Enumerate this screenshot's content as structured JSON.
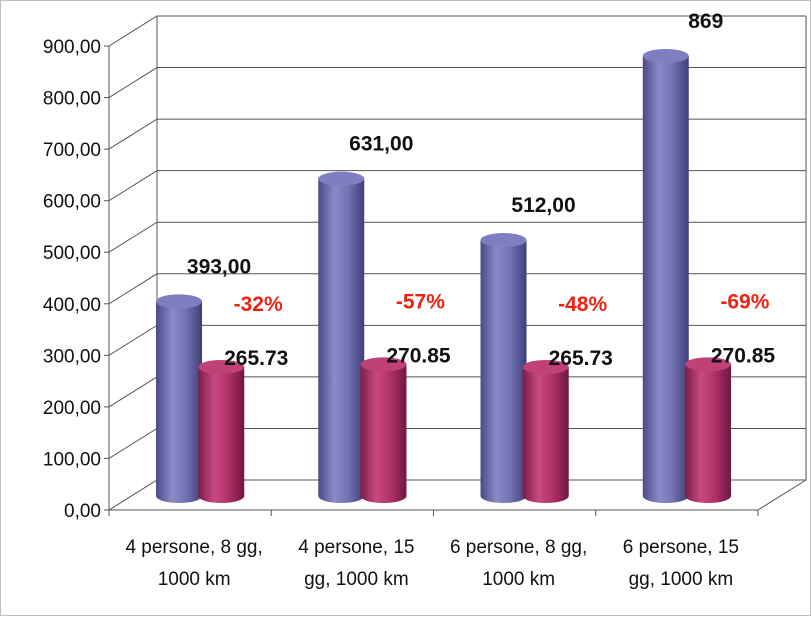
{
  "chart_data": {
    "type": "bar",
    "title": "",
    "xlabel": "",
    "ylabel": "",
    "ylim": [
      0,
      900
    ],
    "grid": true,
    "legend": "none",
    "yticks": [
      "0,00",
      "100,00",
      "200,00",
      "300,00",
      "400,00",
      "500,00",
      "600,00",
      "700,00",
      "800,00",
      "900,00"
    ],
    "categories": [
      [
        "4 persone, 8 gg,",
        "1000 km"
      ],
      [
        "4 persone, 15",
        "gg, 1000 km"
      ],
      [
        "6 persone, 8 gg,",
        "1000 km"
      ],
      [
        "6 persone, 15",
        "gg, 1000 km"
      ]
    ],
    "series": [
      {
        "values": [
          393,
          631,
          512,
          869
        ],
        "labels": [
          "393,00",
          "631,00",
          "512,00",
          "869"
        ],
        "color": "#6f6fb0"
      },
      {
        "values": [
          265.73,
          270.85,
          265.73,
          270.85
        ],
        "labels": [
          "265.73",
          "270.85",
          "265.73",
          "270.85"
        ],
        "color": "#b03068"
      }
    ],
    "annotations": [
      "-32%",
      "-57%",
      "-48%",
      "-69%"
    ]
  }
}
